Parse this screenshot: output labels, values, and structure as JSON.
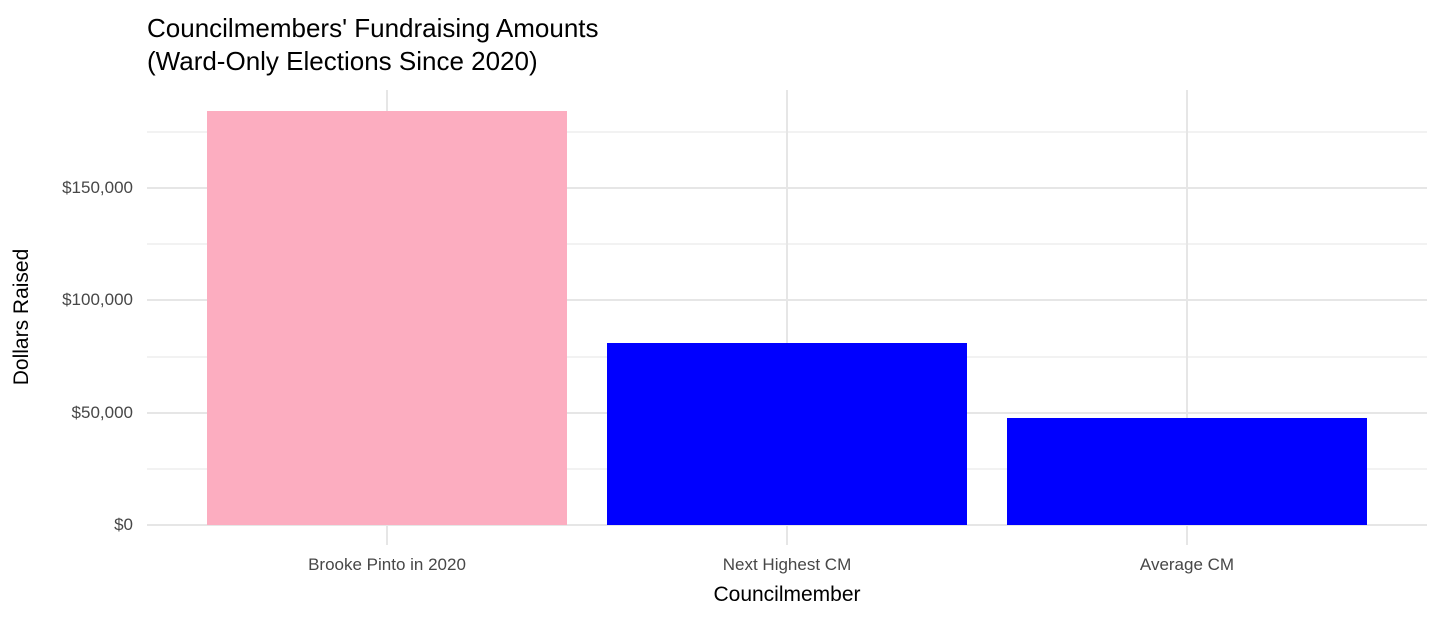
{
  "page": {
    "background": "#FFFFFF"
  },
  "chart_data": {
    "type": "bar",
    "title": "Councilmembers' Fundraising Amounts",
    "subtitle": "(Ward-Only Elections Since 2020)",
    "xlabel": "Councilmember",
    "ylabel": "Dollars Raised",
    "categories": [
      "Brooke Pinto in 2020",
      "Next Highest CM",
      "Average CM"
    ],
    "values": [
      184300,
      81000,
      47600
    ],
    "bar_colors": [
      "#FCADC0",
      "#0000FF",
      "#0000FF"
    ],
    "ylim": [
      0,
      193600
    ],
    "yticks": [
      {
        "value": 0,
        "label": "$0"
      },
      {
        "value": 50000,
        "label": "$50,000"
      },
      {
        "value": 100000,
        "label": "$100,000"
      },
      {
        "value": 150000,
        "label": "$150,000"
      }
    ],
    "yticks_minor": [
      25000,
      75000,
      125000,
      175000
    ],
    "grid": {
      "horizontal": "major+minor",
      "vertical": "major-at-category-centers"
    },
    "legend": "none",
    "colors": {
      "grid_major": "#E6E6E6",
      "grid_minor": "#F2F2F2",
      "axis_text": "#474747",
      "title_text": "#000000",
      "panel_background": "#FFFFFF"
    }
  }
}
